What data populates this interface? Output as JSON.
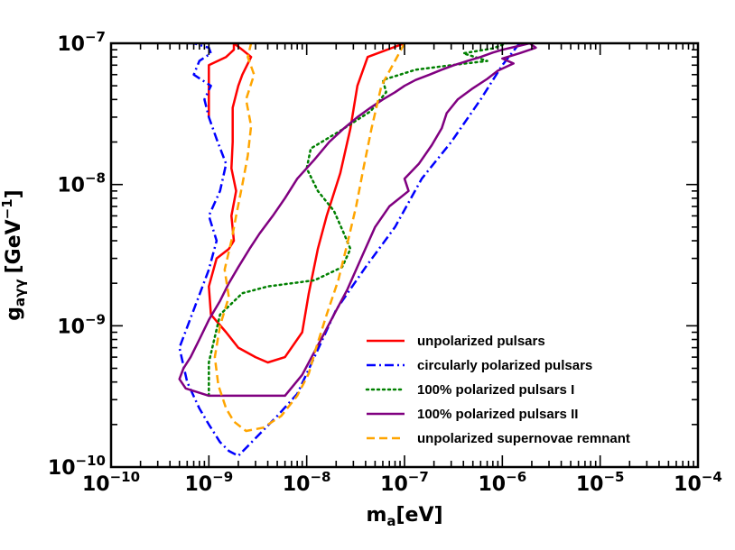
{
  "chart_data": {
    "type": "line",
    "title": "",
    "xlabel": "m",
    "xlabel_sub": "a",
    "xlabel_unit": "[eV]",
    "ylabel": "g",
    "ylabel_sub": "aγγ",
    "ylabel_unit_pre": "[GeV",
    "ylabel_unit_exp": "−1",
    "ylabel_unit_post": "]",
    "xscale": "log",
    "yscale": "log",
    "xlim": [
      1e-10,
      0.0001
    ],
    "ylim": [
      1e-10,
      1e-07
    ],
    "grid": false,
    "legend_position": "lower-right",
    "x_ticks": [
      {
        "base": "10",
        "exp": "−10",
        "value": 1e-10
      },
      {
        "base": "10",
        "exp": "−9",
        "value": 1e-09
      },
      {
        "base": "10",
        "exp": "−8",
        "value": 1e-08
      },
      {
        "base": "10",
        "exp": "−7",
        "value": 1e-07
      },
      {
        "base": "10",
        "exp": "−6",
        "value": 1e-06
      },
      {
        "base": "10",
        "exp": "−5",
        "value": 1e-05
      },
      {
        "base": "10",
        "exp": "−4",
        "value": 0.0001
      }
    ],
    "y_ticks": [
      {
        "base": "10",
        "exp": "−10",
        "value": 1e-10
      },
      {
        "base": "10",
        "exp": "−9",
        "value": 1e-09
      },
      {
        "base": "10",
        "exp": "−8",
        "value": 1e-08
      },
      {
        "base": "10",
        "exp": "−7",
        "value": 1e-07
      }
    ],
    "series": [
      {
        "name": "unpolarized pulsars",
        "color": "#ff0000",
        "dash": "solid",
        "x": [
          1e-07,
          4.2e-08,
          3.3e-08,
          2.8e-08,
          2.2e-08,
          1.6e-08,
          1.3e-08,
          1.05e-08,
          9e-09,
          6e-09,
          4e-09,
          3e-09,
          2e-09,
          1.5e-09,
          1.05e-09,
          1e-09,
          1.2e-09,
          1.6e-09,
          1.8e-09,
          1.7e-09,
          1.9e-09,
          1.7e-09,
          1.75e-09,
          1.75e-09,
          2e-09,
          2.2e-09,
          2.7e-09,
          2.2e-09,
          1.8e-09,
          1.8e-09,
          1.5e-09,
          1e-09,
          1e-09
        ],
        "y": [
          1e-07,
          8e-08,
          5e-08,
          2.5e-08,
          1.2e-08,
          6e-09,
          3.5e-09,
          1.7e-09,
          9e-10,
          6e-10,
          5.5e-10,
          6e-10,
          7e-10,
          9e-10,
          1.2e-09,
          1.9e-09,
          3e-09,
          3.5e-09,
          4e-09,
          6e-09,
          9e-09,
          1.3e-08,
          2e-08,
          3.5e-08,
          5e-08,
          6e-08,
          8e-08,
          9e-08,
          1e-07,
          9e-08,
          8e-08,
          7e-08,
          3e-08
        ]
      },
      {
        "name": "circularly polarized pulsars",
        "color": "#0000ff",
        "dash": "dashdot",
        "x": [
          1.5e-06,
          1e-06,
          6e-07,
          3e-07,
          1.5e-07,
          8e-08,
          4e-08,
          2e-08,
          1.2e-08,
          8e-09,
          5e-09,
          3e-09,
          2e-09,
          1.6e-09,
          1.3e-09,
          1e-09,
          8e-10,
          6e-10,
          5e-10,
          7e-10,
          1e-09,
          1.2e-09,
          1e-09,
          1.3e-09,
          1.5e-09,
          1.2e-09,
          1e-09,
          9e-10,
          1.05e-09,
          7e-10,
          8e-10,
          1.05e-09,
          1e-09,
          7e-10,
          6e-10
        ],
        "y": [
          1e-07,
          7e-08,
          4e-08,
          2e-08,
          1.1e-08,
          5e-09,
          2.6e-09,
          1.3e-09,
          6e-10,
          3.3e-10,
          2.3e-10,
          1.6e-10,
          1.2e-10,
          1.3e-10,
          1.5e-10,
          2e-10,
          2.6e-10,
          4e-10,
          7e-10,
          1.3e-09,
          2.5e-09,
          4e-09,
          6e-09,
          9e-09,
          1.4e-08,
          2.1e-08,
          3e-08,
          4e-08,
          5e-08,
          6e-08,
          7.5e-08,
          8.5e-08,
          9.3e-08,
          1e-07,
          1e-07
        ]
      },
      {
        "name": "100% polarized pulsars I",
        "color": "#008000",
        "dash": "dotted",
        "x": [
          1e-09,
          1e-09,
          1.3e-09,
          2.2e-09,
          4e-09,
          7e-09,
          1.2e-08,
          2.3e-08,
          2.8e-08,
          2.4e-08,
          1.9e-08,
          1.3e-08,
          1e-08,
          1.1e-08,
          2.2e-08,
          4.5e-08,
          6.5e-08,
          6e-08,
          9e-08,
          1.3e-07,
          3e-07,
          7e-07,
          4e-07,
          8e-07,
          1.1e-06
        ],
        "y": [
          3.2e-10,
          5.5e-10,
          1.2e-09,
          1.7e-09,
          1.9e-09,
          2e-09,
          2.1e-09,
          2.6e-09,
          3.5e-09,
          4.5e-09,
          6.5e-09,
          9e-09,
          1.3e-08,
          1.8e-08,
          2.4e-08,
          3.3e-08,
          4.5e-08,
          5.5e-08,
          6e-08,
          6.5e-08,
          7e-08,
          7.5e-08,
          8.5e-08,
          9.2e-08,
          1e-07
        ]
      },
      {
        "name": "100% polarized pulsars II",
        "color": "#800080",
        "dash": "solid",
        "x": [
          1e-09,
          3e-09,
          6e-09,
          9e-09,
          1.4e-08,
          1.9e-08,
          2.6e-08,
          3.6e-08,
          5e-08,
          7e-08,
          1.1e-07,
          1e-07,
          1.4e-07,
          1.9e-07,
          2.4e-07,
          2.7e-07,
          3.5e-07,
          5e-07,
          7e-07,
          9e-07,
          1.3e-06,
          1e-06,
          1.5e-06,
          2.2e-06,
          1.9e-06,
          1.4e-06,
          1e-06,
          8e-07,
          6e-07,
          4.4e-07,
          3.2e-07,
          2.4e-07,
          1.8e-07,
          1.3e-07,
          1e-07,
          8e-08,
          6e-08,
          4.5e-08,
          3.3e-08,
          2.4e-08,
          1.7e-08,
          1.2e-08,
          8e-09,
          6e-09,
          4.5e-09,
          3.3e-09,
          2.6e-09,
          2e-09,
          1.6e-09,
          1.3e-09,
          1e-09,
          8e-10,
          6.5e-10,
          5.5e-10,
          5e-10,
          5.8e-10,
          1e-09
        ],
        "y": [
          3.2e-10,
          3.2e-10,
          3.2e-10,
          4.5e-10,
          8e-10,
          1.2e-09,
          1.8e-09,
          3e-09,
          5e-09,
          7e-09,
          9e-09,
          1.1e-08,
          1.4e-08,
          1.9e-08,
          2.5e-08,
          3.2e-08,
          4e-08,
          4.8e-08,
          5.6e-08,
          6.4e-08,
          7.2e-08,
          7.8e-08,
          8.5e-08,
          9.3e-08,
          1e-07,
          9.5e-08,
          9e-08,
          8.6e-08,
          8e-08,
          7.5e-08,
          7e-08,
          6.5e-08,
          6e-08,
          5.5e-08,
          5e-08,
          4.5e-08,
          4e-08,
          3.5e-08,
          3e-08,
          2.5e-08,
          2e-08,
          1.5e-08,
          1.1e-08,
          8e-09,
          6e-09,
          4.5e-09,
          3.5e-09,
          2.6e-09,
          2e-09,
          1.5e-09,
          1.1e-09,
          8e-10,
          6e-10,
          5e-10,
          4.2e-10,
          3.6e-10,
          3.2e-10
        ]
      },
      {
        "name": "unpolarized supernovae remnant",
        "color": "#ffa500",
        "dash": "dashed",
        "x": [
          1e-07,
          5.8e-08,
          4.6e-08,
          3.8e-08,
          3.2e-08,
          2.6e-08,
          2.1e-08,
          1.6e-08,
          1.25e-08,
          1.05e-08,
          8e-09,
          5.5e-09,
          3.6e-09,
          2.4e-09,
          1.8e-09,
          1.5e-09,
          1.25e-09,
          1.15e-09,
          1.3e-09,
          1.6e-09,
          1.45e-09,
          1.7e-09,
          1.9e-09,
          2.2e-09,
          2.5e-09,
          2.7e-09,
          2.4e-09,
          2.9e-09,
          2.5e-09,
          2.7e-09
        ],
        "y": [
          1e-07,
          5e-08,
          2.5e-08,
          1.3e-08,
          7e-09,
          3.8e-09,
          2.1e-09,
          1.2e-09,
          7e-10,
          4.6e-10,
          3.2e-10,
          2.3e-10,
          1.9e-10,
          1.8e-10,
          2.1e-10,
          2.6e-10,
          3.8e-10,
          6e-10,
          1e-09,
          1.6e-09,
          2.5e-09,
          4e-09,
          6e-09,
          1e-08,
          1.6e-08,
          2.6e-08,
          4e-08,
          6e-08,
          8e-08,
          1e-07
        ]
      }
    ]
  }
}
